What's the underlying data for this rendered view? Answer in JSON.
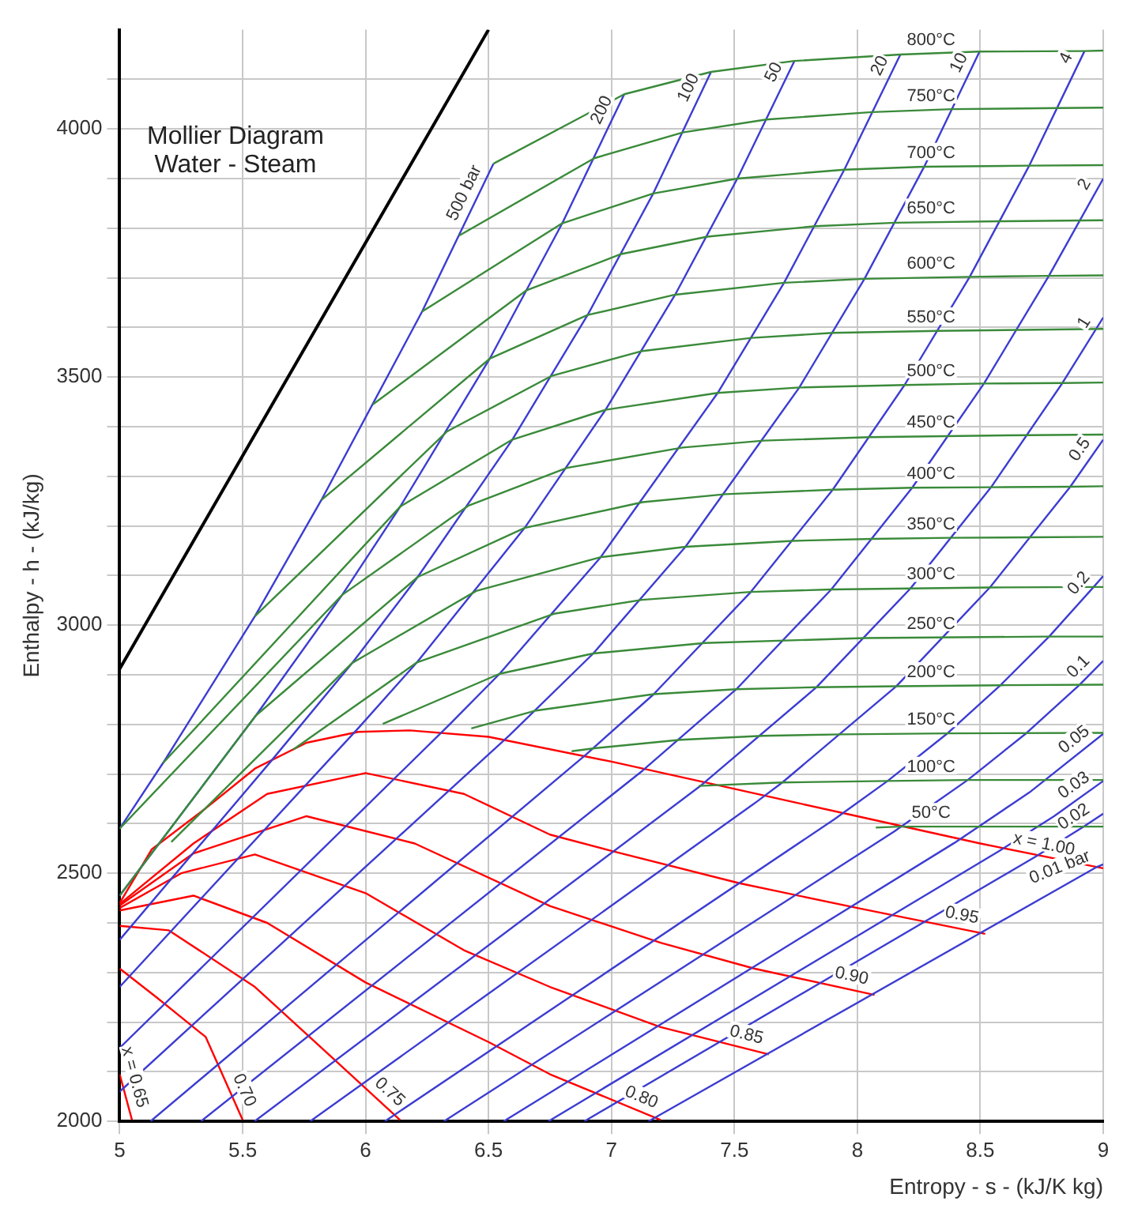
{
  "chart_data": {
    "type": "line",
    "title": "Mollier Diagram",
    "subtitle": "Water - Steam",
    "xlabel": "Entropy - s - (kJ/K kg)",
    "ylabel": "Enthalpy - h - (kJ/kg)",
    "xlim": [
      5,
      9
    ],
    "xticks": [
      5,
      5.5,
      6,
      6.5,
      7,
      7.5,
      8,
      8.5,
      9
    ],
    "ylim": [
      2000,
      4200
    ],
    "yticks": [
      2000,
      {
        "value": 2100,
        "label": null
      },
      {
        "value": 2200,
        "label": null
      },
      {
        "value": 2300,
        "label": null
      },
      {
        "value": 2400,
        "label": null
      },
      2500,
      {
        "value": 2600,
        "label": null
      },
      {
        "value": 2700,
        "label": null
      },
      {
        "value": 2800,
        "label": null
      },
      {
        "value": 2900,
        "label": null
      },
      3000,
      {
        "value": 3100,
        "label": null
      },
      {
        "value": 3200,
        "label": null
      },
      {
        "value": 3300,
        "label": null
      },
      {
        "value": 3400,
        "label": null
      },
      3500,
      {
        "value": 3600,
        "label": null
      },
      {
        "value": 3700,
        "label": null
      },
      {
        "value": 3800,
        "label": null
      },
      {
        "value": 3900,
        "label": null
      },
      4000,
      {
        "value": 4100,
        "label": null
      }
    ],
    "grid": true,
    "legend": false,
    "marker": "none",
    "series": [
      {
        "color": "#000000",
        "x": [
          5,
          6.5
        ],
        "values": [
          2912,
          4200
        ]
      },
      {
        "name": "800°C",
        "color": "#3a8a3a",
        "x": [
          6.52,
          7.052,
          7.405,
          7.744,
          8.175,
          8.497,
          8.924,
          9.0
        ],
        "values": [
          3930,
          4070,
          4115,
          4137,
          4150,
          4156,
          4157,
          4158
        ]
      },
      {
        "name": "750°C",
        "color": "#3a8a3a",
        "x": [
          6.38,
          6.93,
          7.29,
          7.63,
          8.06,
          8.385,
          8.81,
          9.0
        ],
        "values": [
          3785,
          3941,
          3993,
          4019,
          4034,
          4040,
          4042,
          4043
        ]
      },
      {
        "name": "700°C",
        "color": "#3a8a3a",
        "x": [
          6.23,
          6.8,
          7.17,
          7.512,
          7.947,
          8.272,
          8.699,
          9.0
        ],
        "values": [
          3632,
          3810,
          3870,
          3900,
          3918,
          3924,
          3926,
          3927
        ]
      },
      {
        "name": "650°C",
        "color": "#3a8a3a",
        "x": [
          6.03,
          6.655,
          7.04,
          7.39,
          7.83,
          8.155,
          8.58,
          9.0
        ],
        "values": [
          3445,
          3675,
          3748,
          3783,
          3804,
          3811,
          3814,
          3816
        ]
      },
      {
        "name": "600°C",
        "color": "#3a8a3a",
        "x": [
          5.82,
          6.505,
          6.903,
          7.259,
          7.702,
          8.029,
          8.457,
          8.779,
          9.0
        ],
        "values": [
          3252,
          3537,
          3625,
          3666,
          3690,
          3698,
          3702,
          3704,
          3705
        ]
      },
      {
        "name": "550°C",
        "color": "#3a8a3a",
        "x": [
          5.55,
          6.33,
          6.755,
          7.12,
          7.57,
          7.9,
          8.33,
          9.0
        ],
        "values": [
          3018,
          3390,
          3502,
          3552,
          3579,
          3589,
          3593,
          3597
        ]
      },
      {
        "name": "500°C",
        "color": "#3a8a3a",
        "x": [
          5.176,
          6.141,
          6.597,
          6.976,
          7.432,
          7.764,
          8.192,
          8.515,
          8.834,
          9.0
        ],
        "values": [
          2722,
          3239,
          3374,
          3434,
          3468,
          3479,
          3484,
          3487,
          3488,
          3489
        ]
      },
      {
        "name": "450°C",
        "color": "#3a8a3a",
        "x": [
          5.0,
          5.905,
          6.419,
          6.819,
          7.29,
          7.62,
          8.05,
          8.69,
          9.0
        ],
        "values": [
          2590,
          3061,
          3241,
          3317,
          3358,
          3372,
          3379,
          3383,
          3384
        ]
      },
      {
        "name": "400°C",
        "color": "#3a8a3a",
        "x": [
          5.0,
          5.554,
          6.212,
          6.647,
          7.127,
          7.465,
          7.9,
          8.223,
          8.544,
          8.866,
          9.0
        ],
        "values": [
          2455,
          2818,
          3097,
          3196,
          3248,
          3264,
          3273,
          3277,
          3278,
          3279,
          3280
        ]
      },
      {
        "name": "350°C",
        "color": "#3a8a3a",
        "x": [
          5.21,
          5.946,
          6.45,
          6.956,
          7.301,
          7.74,
          8.06,
          8.38,
          8.7,
          9.0
        ],
        "values": [
          2563,
          2924,
          3069,
          3137,
          3158,
          3170,
          3174,
          3176,
          3177,
          3178
        ]
      },
      {
        "name": "300°C",
        "color": "#3a8a3a",
        "x": [
          5.705,
          6.209,
          6.766,
          7.124,
          7.567,
          7.894,
          8.216,
          8.539,
          8.96,
          9.0
        ],
        "values": [
          2749,
          2925,
          3023,
          3051,
          3067,
          3072,
          3074,
          3076,
          3077,
          3077
        ]
      },
      {
        "name": "250°C",
        "color": "#3a8a3a",
        "x": [
          6.07,
          6.545,
          6.926,
          7.38,
          8.03,
          8.77,
          9.0
        ],
        "values": [
          2801,
          2902,
          2943,
          2964,
          2974,
          2977,
          2977
        ]
      },
      {
        "name": "200°C",
        "color": "#3a8a3a",
        "x": [
          6.43,
          6.694,
          7.172,
          7.508,
          7.834,
          8.159,
          8.584,
          9.0
        ],
        "values": [
          2792,
          2828,
          2861,
          2871,
          2875,
          2877,
          2879,
          2880
        ]
      },
      {
        "name": "150°C",
        "color": "#3a8a3a",
        "x": [
          6.838,
          6.93,
          7.281,
          7.614,
          7.94,
          8.37,
          9.0
        ],
        "values": [
          2746,
          2752,
          2769,
          2777,
          2780,
          2782,
          2783
        ]
      },
      {
        "name": "100°C",
        "color": "#3a8a3a",
        "x": [
          7.355,
          7.695,
          8.123,
          8.449,
          9.0
        ],
        "values": [
          2676,
          2683,
          2686,
          2688,
          2688
        ]
      },
      {
        "name": "50°C",
        "color": "#3a8a3a",
        "x": [
          8.075,
          8.17,
          8.49,
          9.0
        ],
        "values": [
          2592,
          2594,
          2594,
          2594
        ]
      },
      {
        "name": "500 bar",
        "color": "#3c3cd2",
        "x": [
          5.0,
          5.176,
          5.55,
          5.82,
          6.23,
          6.52
        ],
        "values": [
          2590,
          2722,
          3018,
          3252,
          3632,
          3930
        ]
      },
      {
        "name": "200",
        "color": "#3c3cd2",
        "x": [
          5.0,
          5.554,
          5.905,
          6.141,
          6.505,
          6.8,
          7.052
        ],
        "values": [
          2455,
          2818,
          3061,
          3239,
          3537,
          3810,
          4070
        ]
      },
      {
        "name": "100",
        "color": "#3c3cd2",
        "x": [
          5.0,
          5.614,
          5.946,
          6.212,
          6.597,
          6.903,
          7.17,
          7.405
        ],
        "values": [
          2366,
          2725,
          2924,
          3097,
          3374,
          3625,
          3870,
          4115
        ]
      },
      {
        "name": "50",
        "color": "#3c3cd2",
        "x": [
          5.0,
          5.973,
          6.209,
          6.647,
          6.976,
          7.259,
          7.512,
          7.744
        ],
        "values": [
          2271,
          2794,
          2925,
          3196,
          3434,
          3666,
          3900,
          4137
        ]
      },
      {
        "name": "20",
        "color": "#3c3cd2",
        "x": [
          5.0,
          6.34,
          6.545,
          6.956,
          7.432,
          7.702,
          7.947,
          8.175
        ],
        "values": [
          2148,
          2799,
          2902,
          3137,
          3468,
          3690,
          3918,
          4150
        ]
      },
      {
        "name": "10",
        "color": "#3c3cd2",
        "x": [
          5.0,
          6.585,
          6.926,
          7.301,
          7.764,
          8.029,
          8.272,
          8.497
        ],
        "values": [
          2060,
          2778,
          2943,
          3158,
          3479,
          3698,
          3924,
          4156
        ]
      },
      {
        "name": "4",
        "color": "#3c3cd2",
        "x": [
          5.125,
          6.896,
          7.172,
          7.567,
          7.9,
          8.192,
          8.457,
          8.699,
          8.924
        ],
        "values": [
          2000,
          2739,
          2861,
          3067,
          3273,
          3484,
          3702,
          3926,
          4157
        ]
      },
      {
        "name": "2",
        "color": "#3c3cd2",
        "x": [
          5.33,
          7.127,
          7.508,
          7.894,
          8.223,
          8.515,
          8.779,
          9.0
        ],
        "values": [
          2000,
          2707,
          2871,
          3072,
          3277,
          3487,
          3704,
          3900
        ]
      },
      {
        "name": "1",
        "color": "#3c3cd2",
        "x": [
          5.548,
          7.359,
          7.834,
          8.216,
          8.544,
          8.834,
          9.0
        ],
        "values": [
          2000,
          2675,
          2875,
          3074,
          3278,
          3488,
          3620
        ]
      },
      {
        "name": "0.5",
        "color": "#3c3cd2",
        "x": [
          5.774,
          7.593,
          7.695,
          8.159,
          8.539,
          8.866,
          9.0
        ],
        "values": [
          2000,
          2645,
          2683,
          2877,
          3076,
          3279,
          3374
        ]
      },
      {
        "name": "0.2",
        "color": "#3c3cd2",
        "x": [
          6.078,
          7.907,
          8.123,
          8.369,
          8.584,
          8.78,
          8.961,
          9.0
        ],
        "values": [
          2000,
          2609,
          2686,
          2783,
          2880,
          2977,
          3077,
          3099
        ]
      },
      {
        "name": "0.1",
        "color": "#3c3cd2",
        "x": [
          6.318,
          8.149,
          8.449,
          8.689,
          8.904,
          9.0
        ],
        "values": [
          2000,
          2584,
          2688,
          2783,
          2880,
          2928
        ]
      },
      {
        "name": "0.05",
        "color": "#3c3cd2",
        "x": [
          6.561,
          8.394,
          8.7,
          9.0
        ],
        "values": [
          2000,
          2561,
          2663,
          2781
        ]
      },
      {
        "name": "0.03",
        "color": "#3c3cd2",
        "x": [
          6.743,
          8.577,
          8.8,
          9.0
        ],
        "values": [
          2000,
          2545,
          2615,
          2686
        ]
      },
      {
        "name": "0.02",
        "color": "#3c3cd2",
        "x": [
          6.889,
          8.723,
          8.92,
          9.0
        ],
        "values": [
          2000,
          2533,
          2594,
          2620
        ]
      },
      {
        "name": "0.01 bar",
        "color": "#3c3cd2",
        "x": [
          7.15,
          8.975,
          9.0
        ],
        "values": [
          2000,
          2513,
          2518
        ]
      },
      {
        "name": "x = 1.00",
        "color": "#ff0000",
        "x": [
          5.0,
          5.13,
          5.35,
          5.55,
          5.76,
          5.97,
          6.18,
          6.5,
          7.0,
          7.5,
          8.0,
          8.5,
          9.0
        ],
        "values": [
          2440,
          2548,
          2631,
          2711,
          2763,
          2785,
          2788,
          2775,
          2725,
          2670,
          2615,
          2560,
          2510
        ]
      },
      {
        "name": "0.95",
        "color": "#ff0000",
        "x": [
          5.0,
          5.3,
          5.6,
          6.0,
          6.4,
          6.75,
          7.0,
          7.52,
          8.0,
          8.52
        ],
        "values": [
          2438,
          2560,
          2660,
          2702,
          2660,
          2578,
          2545,
          2480,
          2430,
          2378
        ]
      },
      {
        "name": "0.90",
        "color": "#ff0000",
        "x": [
          5.0,
          5.3,
          5.76,
          6.2,
          6.75,
          7.2,
          7.58,
          8.07
        ],
        "values": [
          2435,
          2540,
          2615,
          2560,
          2434,
          2360,
          2308,
          2255
        ]
      },
      {
        "name": "0.85",
        "color": "#ff0000",
        "x": [
          5.0,
          5.25,
          5.55,
          6.0,
          6.4,
          6.75,
          7.2,
          7.64
        ],
        "values": [
          2430,
          2500,
          2538,
          2460,
          2345,
          2271,
          2190,
          2135
        ]
      },
      {
        "name": "0.80",
        "color": "#ff0000",
        "x": [
          5.0,
          5.3,
          5.6,
          6.0,
          6.5,
          6.75,
          7.2
        ],
        "values": [
          2425,
          2455,
          2400,
          2280,
          2160,
          2095,
          2003
        ]
      },
      {
        "name": "0.75",
        "color": "#ff0000",
        "x": [
          5.0,
          5.2,
          5.55,
          5.87,
          6.14
        ],
        "values": [
          2394,
          2385,
          2271,
          2126,
          2003
        ]
      },
      {
        "name": "0.70",
        "color": "#ff0000",
        "x": [
          5.0,
          5.15,
          5.35,
          5.5
        ],
        "values": [
          2308,
          2250,
          2170,
          2003
        ]
      },
      {
        "name": "x = 0.65",
        "color": "#ff0000",
        "x": [
          5.0,
          5.05
        ],
        "values": [
          2095,
          2003
        ]
      }
    ]
  }
}
